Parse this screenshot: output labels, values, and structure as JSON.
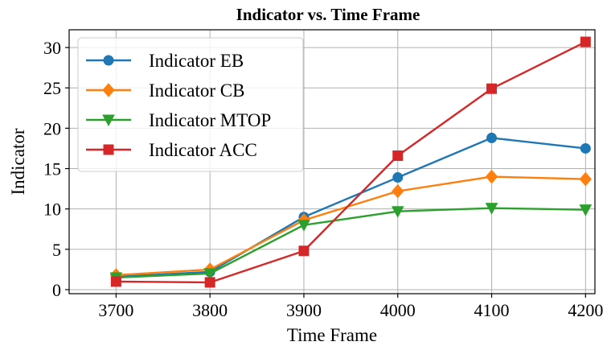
{
  "chart_data": {
    "type": "line",
    "title": "Indicator vs. Time Frame",
    "xlabel": "Time Frame",
    "ylabel": "Indicator",
    "x": [
      3700,
      3800,
      3900,
      4000,
      4100,
      4200
    ],
    "xticks": [
      "3700",
      "3800",
      "3900",
      "4000",
      "4100",
      "4200"
    ],
    "yticks": [
      "0",
      "5",
      "10",
      "15",
      "20",
      "25",
      "30"
    ],
    "xlim": [
      3650,
      4210
    ],
    "ylim": [
      -0.5,
      32.2
    ],
    "grid": true,
    "legend_position": "top-left",
    "series": [
      {
        "name": "Indicator EB",
        "color": "#1f77b4",
        "marker": "circle",
        "values": [
          1.6,
          2.2,
          9.0,
          13.9,
          18.8,
          17.5
        ]
      },
      {
        "name": "Indicator CB",
        "color": "#ff7f0e",
        "marker": "diamond",
        "values": [
          1.8,
          2.5,
          8.6,
          12.2,
          14.0,
          13.7
        ]
      },
      {
        "name": "Indicator MTOP",
        "color": "#2ca02c",
        "marker": "triangle-down",
        "values": [
          1.5,
          2.0,
          8.0,
          9.7,
          10.1,
          9.9
        ]
      },
      {
        "name": "Indicator ACC",
        "color": "#d62728",
        "marker": "square",
        "values": [
          1.0,
          0.9,
          4.8,
          16.6,
          24.9,
          30.7
        ]
      }
    ]
  }
}
